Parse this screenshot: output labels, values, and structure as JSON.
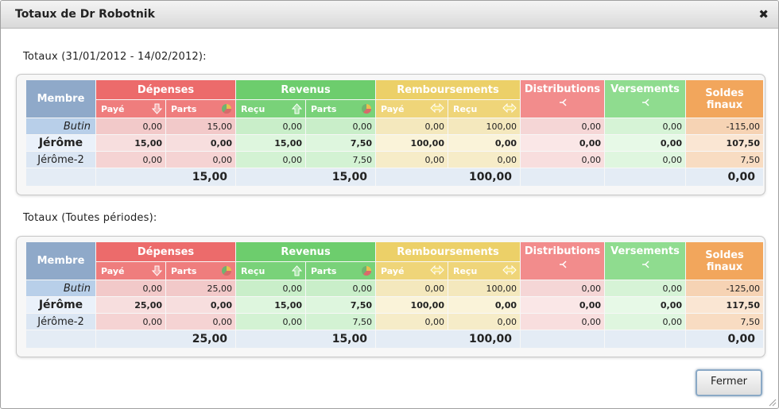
{
  "dialog": {
    "title": "Totaux de Dr Robotnik",
    "close_glyph": "✖",
    "close_button_label": "Fermer"
  },
  "headers": {
    "membre": "Membre",
    "depenses": "Dépenses",
    "revenus": "Revenus",
    "remboursements": "Remboursements",
    "distributions": "Distributions",
    "versements": "Versements",
    "soldes_line1": "Soldes",
    "soldes_line2": "finaux",
    "paye": "Payé",
    "parts": "Parts",
    "recu": "Reçu"
  },
  "icons": {
    "down_arrow": "down-arrow-icon",
    "up_arrow": "up-arrow-icon",
    "pie": "pie-chart-icon",
    "swap": "swap-arrows-icon",
    "split": "split-icon"
  },
  "sections": [
    {
      "title": "Totaux (31/01/2012 - 14/02/2012):",
      "rows": [
        {
          "membre": "Butin",
          "dep_paye": "0,00",
          "dep_parts": "15,00",
          "rev_recu": "0,00",
          "rev_parts": "0,00",
          "remb_paye": "0,00",
          "remb_recu": "100,00",
          "dist": "0,00",
          "vers": "0,00",
          "solde": "-115,00"
        },
        {
          "membre": "Jérôme",
          "dep_paye": "15,00",
          "dep_parts": "0,00",
          "rev_recu": "15,00",
          "rev_parts": "7,50",
          "remb_paye": "100,00",
          "remb_recu": "0,00",
          "dist": "0,00",
          "vers": "0,00",
          "solde": "107,50"
        },
        {
          "membre": "Jérôme-2",
          "dep_paye": "0,00",
          "dep_parts": "0,00",
          "rev_recu": "0,00",
          "rev_parts": "7,50",
          "remb_paye": "0,00",
          "remb_recu": "0,00",
          "dist": "0,00",
          "vers": "0,00",
          "solde": "7,50"
        }
      ],
      "footer": {
        "depenses": "15,00",
        "revenus": "15,00",
        "remboursements": "100,00",
        "soldes": "0,00"
      }
    },
    {
      "title": "Totaux (Toutes périodes):",
      "rows": [
        {
          "membre": "Butin",
          "dep_paye": "0,00",
          "dep_parts": "25,00",
          "rev_recu": "0,00",
          "rev_parts": "0,00",
          "remb_paye": "0,00",
          "remb_recu": "100,00",
          "dist": "0,00",
          "vers": "0,00",
          "solde": "-125,00"
        },
        {
          "membre": "Jérôme",
          "dep_paye": "25,00",
          "dep_parts": "0,00",
          "rev_recu": "15,00",
          "rev_parts": "7,50",
          "remb_paye": "100,00",
          "remb_recu": "0,00",
          "dist": "0,00",
          "vers": "0,00",
          "solde": "117,50"
        },
        {
          "membre": "Jérôme-2",
          "dep_paye": "0,00",
          "dep_parts": "0,00",
          "rev_recu": "0,00",
          "rev_parts": "7,50",
          "remb_paye": "0,00",
          "remb_recu": "0,00",
          "dist": "0,00",
          "vers": "0,00",
          "solde": "7,50"
        }
      ],
      "footer": {
        "depenses": "25,00",
        "revenus": "15,00",
        "remboursements": "100,00",
        "soldes": "0,00"
      }
    }
  ]
}
